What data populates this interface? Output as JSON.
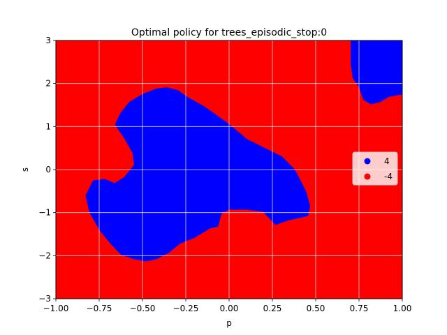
{
  "chart_data": {
    "type": "scatter",
    "title": "Optimal policy for trees_episodic_stop:0",
    "xlabel": "p",
    "ylabel": "s",
    "xlim": [
      -1.0,
      1.0
    ],
    "ylim": [
      -3,
      3
    ],
    "x_ticks": [
      -1.0,
      -0.75,
      -0.5,
      -0.25,
      0.0,
      0.25,
      0.5,
      0.75,
      1.0
    ],
    "x_tick_labels": [
      "−1.00",
      "−0.75",
      "−0.50",
      "−0.25",
      "0.00",
      "0.25",
      "0.50",
      "0.75",
      "1.00"
    ],
    "y_ticks": [
      -3,
      -2,
      -1,
      0,
      1,
      2,
      3
    ],
    "y_tick_labels": [
      "−3",
      "−2",
      "−1",
      "0",
      "1",
      "2",
      "3"
    ],
    "grid": true,
    "legend_position": "center-right",
    "series": [
      {
        "name": "4",
        "color": "#0000ff",
        "regions": [
          {
            "polygon": [
              [
                -0.57,
                1.55
              ],
              [
                -0.5,
                1.72
              ],
              [
                -0.42,
                1.85
              ],
              [
                -0.36,
                1.88
              ],
              [
                -0.3,
                1.82
              ],
              [
                -0.24,
                1.65
              ],
              [
                -0.15,
                1.45
              ],
              [
                -0.08,
                1.25
              ],
              [
                0.0,
                1.02
              ],
              [
                0.1,
                0.68
              ],
              [
                0.2,
                0.48
              ],
              [
                0.3,
                0.28
              ],
              [
                0.37,
                0.0
              ],
              [
                0.41,
                -0.3
              ],
              [
                0.44,
                -0.55
              ],
              [
                0.46,
                -0.85
              ],
              [
                0.45,
                -1.05
              ],
              [
                0.34,
                -1.15
              ],
              [
                0.27,
                -1.25
              ],
              [
                0.2,
                -0.95
              ],
              [
                0.1,
                -0.9
              ],
              [
                0.0,
                -0.9
              ],
              [
                -0.05,
                -1.0
              ],
              [
                -0.07,
                -1.3
              ],
              [
                -0.11,
                -1.33
              ],
              [
                -0.2,
                -1.55
              ],
              [
                -0.29,
                -1.7
              ],
              [
                -0.35,
                -1.9
              ],
              [
                -0.42,
                -2.05
              ],
              [
                -0.48,
                -2.1
              ],
              [
                -0.55,
                -2.05
              ],
              [
                -0.62,
                -1.95
              ],
              [
                -0.68,
                -1.7
              ],
              [
                -0.74,
                -1.4
              ],
              [
                -0.8,
                -0.98
              ],
              [
                -0.82,
                -0.6
              ],
              [
                -0.78,
                -0.28
              ],
              [
                -0.72,
                -0.25
              ],
              [
                -0.66,
                -0.35
              ],
              [
                -0.6,
                -0.2
              ],
              [
                -0.54,
                0.1
              ],
              [
                -0.55,
                0.4
              ],
              [
                -0.6,
                0.75
              ],
              [
                -0.65,
                1.05
              ],
              [
                -0.62,
                1.3
              ]
            ]
          },
          {
            "polygon": [
              [
                0.71,
                3.0
              ],
              [
                1.0,
                3.0
              ],
              [
                1.0,
                1.78
              ],
              [
                0.92,
                1.72
              ],
              [
                0.87,
                1.6
              ],
              [
                0.82,
                1.55
              ],
              [
                0.78,
                1.65
              ],
              [
                0.76,
                1.9
              ],
              [
                0.72,
                2.15
              ],
              [
                0.71,
                2.45
              ]
            ]
          }
        ]
      },
      {
        "name": "-4",
        "color": "#ff0000",
        "background": true
      }
    ]
  }
}
